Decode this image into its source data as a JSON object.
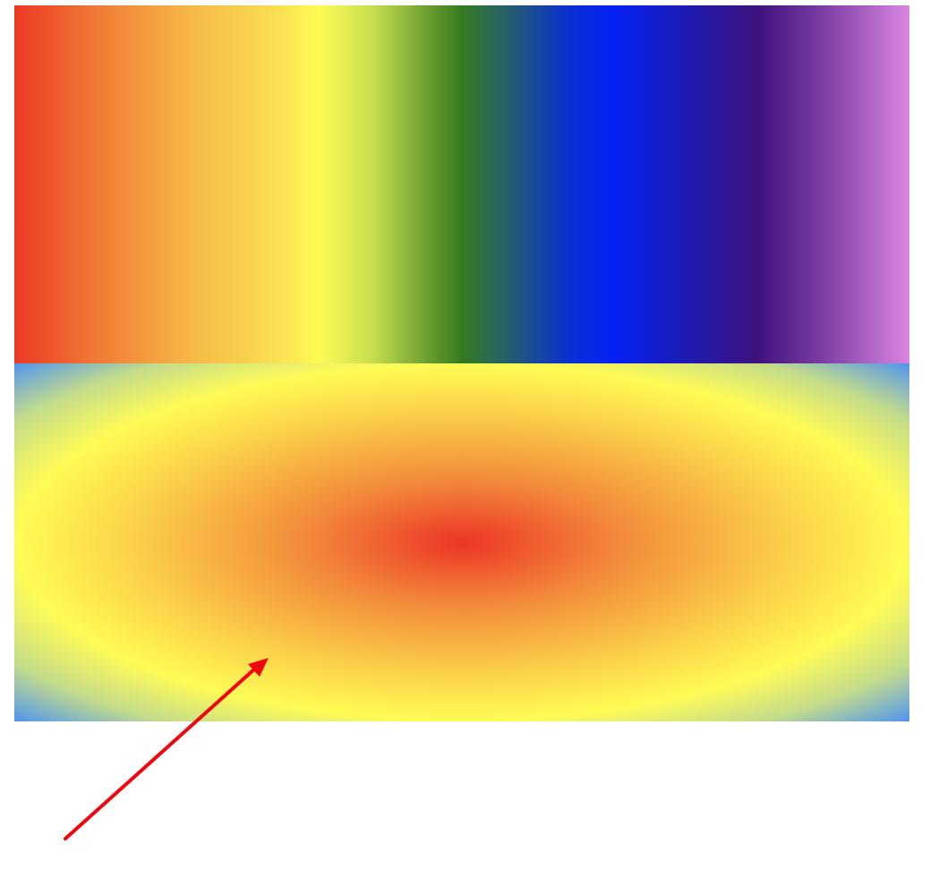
{
  "linear_gradient": {
    "direction": "to right",
    "stops": [
      {
        "color": "#ec3a26",
        "offset": 0
      },
      {
        "color": "#f07f36",
        "offset": 10
      },
      {
        "color": "#f6b947",
        "offset": 20
      },
      {
        "color": "#fbe253",
        "offset": 30
      },
      {
        "color": "#fffa55",
        "offset": 34
      },
      {
        "color": "#c6df4f",
        "offset": 40
      },
      {
        "color": "#6e9f2f",
        "offset": 46
      },
      {
        "color": "#357b20",
        "offset": 50
      },
      {
        "color": "#25606a",
        "offset": 55
      },
      {
        "color": "#0a2fd2",
        "offset": 62
      },
      {
        "color": "#0621f5",
        "offset": 67
      },
      {
        "color": "#1d1bb3",
        "offset": 75
      },
      {
        "color": "#3e127e",
        "offset": 83
      },
      {
        "color": "#7a3ba2",
        "offset": 90
      },
      {
        "color": "#d985e2",
        "offset": 100
      }
    ]
  },
  "radial_gradient": {
    "shape": "ellipse",
    "stops": [
      {
        "color": "#ed3527",
        "offset": 0
      },
      {
        "color": "#f28a3a",
        "offset": 25
      },
      {
        "color": "#fbd149",
        "offset": 52
      },
      {
        "color": "#fffb56",
        "offset": 70
      },
      {
        "color": "#c4dc8a",
        "offset": 85
      },
      {
        "color": "#4f94f0",
        "offset": 100
      }
    ]
  },
  "arrow": {
    "color": "#f0060d"
  }
}
